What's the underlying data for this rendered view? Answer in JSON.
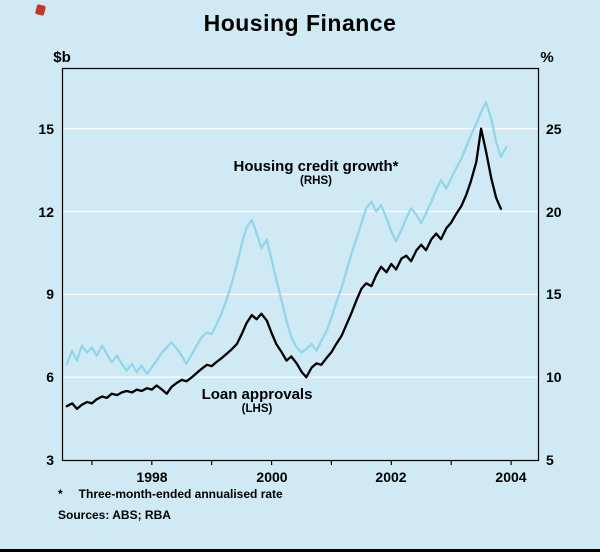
{
  "title": "Housing Finance",
  "axes": {
    "left_unit": "$b",
    "right_unit": "%"
  },
  "annotations": {
    "credit_label": "Housing credit growth*",
    "credit_sub": "(RHS)",
    "loans_label": "Loan approvals",
    "loans_sub": "(LHS)"
  },
  "footnote_marker": "*",
  "footnote_text": "Three-month-ended annualised rate",
  "sources": "Sources: ABS; RBA",
  "colors": {
    "background": "#cfeaf4",
    "credit_line": "#94d5ec",
    "loans_line": "#000000",
    "gridline": "#ffffff",
    "frame": "#000000"
  },
  "chart_data": {
    "type": "line",
    "title": "Housing Finance",
    "x_axis": {
      "min": 1996.5,
      "max": 2004.45,
      "year_ticks": [
        1997,
        1998,
        1999,
        2000,
        2001,
        2002,
        2003,
        2004
      ],
      "labels": [
        "1998",
        "2000",
        "2002",
        "2004"
      ],
      "label_positions": [
        1998,
        2000,
        2002,
        2004
      ]
    },
    "left_axis": {
      "label": "$b",
      "min": 3,
      "max": 17.2,
      "ticks": [
        3,
        6,
        9,
        12,
        15
      ]
    },
    "right_axis": {
      "label": "%",
      "min": 5,
      "max": 28.67,
      "ticks": [
        5,
        10,
        15,
        20,
        25
      ]
    },
    "grid": "horizontal",
    "series": [
      {
        "name": "Loan approvals",
        "axis": "left",
        "color": "#000000",
        "x": [
          1996.58,
          1996.67,
          1996.75,
          1996.83,
          1996.92,
          1997,
          1997.08,
          1997.17,
          1997.25,
          1997.33,
          1997.42,
          1997.5,
          1997.58,
          1997.67,
          1997.75,
          1997.83,
          1997.92,
          1998,
          1998.08,
          1998.17,
          1998.25,
          1998.33,
          1998.42,
          1998.5,
          1998.58,
          1998.67,
          1998.75,
          1998.83,
          1998.92,
          1999,
          1999.08,
          1999.17,
          1999.25,
          1999.33,
          1999.42,
          1999.5,
          1999.58,
          1999.67,
          1999.75,
          1999.83,
          1999.92,
          2000,
          2000.08,
          2000.17,
          2000.25,
          2000.33,
          2000.42,
          2000.5,
          2000.58,
          2000.67,
          2000.75,
          2000.83,
          2000.92,
          2001,
          2001.08,
          2001.17,
          2001.25,
          2001.33,
          2001.42,
          2001.5,
          2001.58,
          2001.67,
          2001.75,
          2001.83,
          2001.92,
          2002,
          2002.08,
          2002.17,
          2002.25,
          2002.33,
          2002.42,
          2002.5,
          2002.58,
          2002.67,
          2002.75,
          2002.83,
          2002.92,
          2003,
          2003.08,
          2003.17,
          2003.25,
          2003.33,
          2003.42,
          2003.5,
          2003.58,
          2003.67,
          2003.75,
          2003.83
        ],
        "y": [
          4.95,
          5.05,
          4.85,
          5.0,
          5.1,
          5.05,
          5.2,
          5.3,
          5.25,
          5.4,
          5.35,
          5.45,
          5.5,
          5.45,
          5.55,
          5.5,
          5.6,
          5.55,
          5.7,
          5.55,
          5.4,
          5.65,
          5.8,
          5.9,
          5.85,
          6.0,
          6.15,
          6.3,
          6.45,
          6.4,
          6.55,
          6.7,
          6.85,
          7.0,
          7.2,
          7.55,
          7.95,
          8.25,
          8.1,
          8.3,
          8.05,
          7.6,
          7.2,
          6.9,
          6.6,
          6.75,
          6.5,
          6.2,
          6.0,
          6.35,
          6.5,
          6.45,
          6.7,
          6.9,
          7.2,
          7.5,
          7.9,
          8.3,
          8.8,
          9.2,
          9.4,
          9.3,
          9.7,
          10.0,
          9.8,
          10.1,
          9.9,
          10.3,
          10.4,
          10.2,
          10.6,
          10.8,
          10.6,
          11.0,
          11.2,
          11.0,
          11.4,
          11.6,
          11.9,
          12.2,
          12.6,
          13.1,
          13.8,
          15.0,
          14.2,
          13.2,
          12.5,
          12.1
        ]
      },
      {
        "name": "Housing credit growth (three-month-ended annualised rate)",
        "axis": "right",
        "color": "#94d5ec",
        "x": [
          1996.58,
          1996.67,
          1996.75,
          1996.83,
          1996.92,
          1997,
          1997.08,
          1997.17,
          1997.25,
          1997.33,
          1997.42,
          1997.5,
          1997.58,
          1997.67,
          1997.75,
          1997.83,
          1997.92,
          1998,
          1998.08,
          1998.17,
          1998.25,
          1998.33,
          1998.42,
          1998.5,
          1998.58,
          1998.67,
          1998.75,
          1998.83,
          1998.92,
          1999,
          1999.08,
          1999.17,
          1999.25,
          1999.33,
          1999.42,
          1999.5,
          1999.58,
          1999.67,
          1999.75,
          1999.83,
          1999.92,
          2000,
          2000.08,
          2000.17,
          2000.25,
          2000.33,
          2000.42,
          2000.5,
          2000.58,
          2000.67,
          2000.75,
          2000.83,
          2000.92,
          2001,
          2001.08,
          2001.17,
          2001.25,
          2001.33,
          2001.42,
          2001.5,
          2001.58,
          2001.67,
          2001.75,
          2001.83,
          2001.92,
          2002,
          2002.08,
          2002.17,
          2002.25,
          2002.33,
          2002.42,
          2002.5,
          2002.58,
          2002.67,
          2002.75,
          2002.83,
          2002.92,
          2003,
          2003.08,
          2003.17,
          2003.25,
          2003.33,
          2003.42,
          2003.5,
          2003.58,
          2003.67,
          2003.75,
          2003.83,
          2003.92
        ],
        "y": [
          10.8,
          11.6,
          11.0,
          11.9,
          11.5,
          11.8,
          11.3,
          11.9,
          11.4,
          10.9,
          11.3,
          10.8,
          10.4,
          10.8,
          10.3,
          10.7,
          10.2,
          10.6,
          11.0,
          11.5,
          11.8,
          12.1,
          11.7,
          11.3,
          10.8,
          11.4,
          11.9,
          12.4,
          12.7,
          12.6,
          13.2,
          13.9,
          14.7,
          15.6,
          16.8,
          18.0,
          19.0,
          19.5,
          18.7,
          17.8,
          18.3,
          17.1,
          15.9,
          14.6,
          13.4,
          12.4,
          11.8,
          11.5,
          11.7,
          12.0,
          11.6,
          12.2,
          12.8,
          13.6,
          14.5,
          15.4,
          16.4,
          17.4,
          18.4,
          19.3,
          20.2,
          20.6,
          20.0,
          20.4,
          19.6,
          18.8,
          18.2,
          18.9,
          19.6,
          20.2,
          19.8,
          19.3,
          19.9,
          20.6,
          21.3,
          21.9,
          21.4,
          22.0,
          22.6,
          23.2,
          23.9,
          24.6,
          25.3,
          26.0,
          26.6,
          25.6,
          24.2,
          23.3,
          23.9
        ]
      }
    ]
  }
}
